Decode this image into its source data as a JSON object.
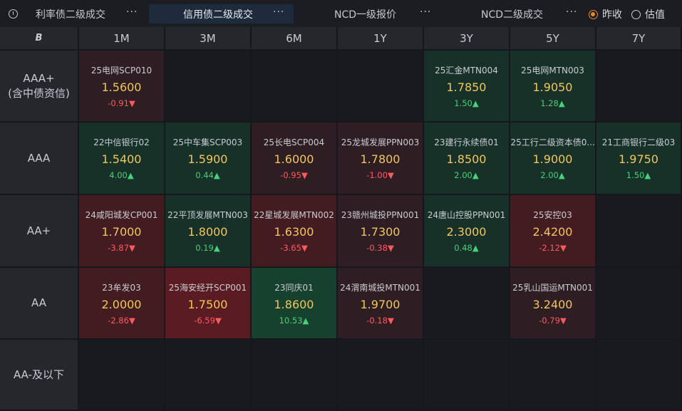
{
  "tabs": [
    {
      "label": "利率债二级成交",
      "more": "···"
    },
    {
      "label": "信用债二级成交",
      "more": "···"
    },
    {
      "label": "NCD一级报价",
      "more": "···"
    },
    {
      "label": "NCD二级成交",
      "more": "···"
    }
  ],
  "radio": {
    "option1": "昨收",
    "option2": "估值"
  },
  "grid": {
    "corner_icon": "B",
    "columns": [
      "1M",
      "3M",
      "6M",
      "1Y",
      "3Y",
      "5Y",
      "7Y"
    ],
    "rows": [
      "AAA+\n(含中债资信)",
      "AAA",
      "AA+",
      "AA",
      "AA-及以下"
    ],
    "row_labels": {
      "r0_line1": "AAA+",
      "r0_line2": "(含中债资信)",
      "r1": "AAA",
      "r2": "AA+",
      "r3": "AA",
      "r4": "AA-及以下"
    },
    "cells": [
      [
        {
          "name": "25电网SCP010",
          "yield": "1.5600",
          "change": "-0.91▼",
          "dir": "down",
          "tone": "r1"
        },
        null,
        null,
        null,
        {
          "name": "25汇金MTN004",
          "yield": "1.7850",
          "change": "1.50▲",
          "dir": "up",
          "tone": "g"
        },
        {
          "name": "25电网MTN003",
          "yield": "1.9050",
          "change": "1.28▲",
          "dir": "up",
          "tone": "g"
        },
        null
      ],
      [
        {
          "name": "22中信银行02",
          "yield": "1.5400",
          "change": "4.00▲",
          "dir": "up",
          "tone": "g"
        },
        {
          "name": "25中车集SCP003",
          "yield": "1.5900",
          "change": "0.44▲",
          "dir": "up",
          "tone": "g"
        },
        {
          "name": "25长电SCP004",
          "yield": "1.6000",
          "change": "-0.95▼",
          "dir": "down",
          "tone": "r1"
        },
        {
          "name": "25龙城发展PPN003",
          "yield": "1.7800",
          "change": "-1.00▼",
          "dir": "down",
          "tone": "r1"
        },
        {
          "name": "23建行永续债01",
          "yield": "1.8500",
          "change": "2.00▲",
          "dir": "up",
          "tone": "g"
        },
        {
          "name": "25工行二级资本债0...",
          "yield": "1.9000",
          "change": "2.00▲",
          "dir": "up",
          "tone": "g"
        },
        {
          "name": "21工商银行二级03",
          "yield": "1.9750",
          "change": "1.50▲",
          "dir": "up",
          "tone": "g"
        }
      ],
      [
        {
          "name": "24咸阳城发CP001",
          "yield": "1.7000",
          "change": "-3.87▼",
          "dir": "down",
          "tone": "r2"
        },
        {
          "name": "22平顶发展MTN003",
          "yield": "1.8000",
          "change": "0.19▲",
          "dir": "up",
          "tone": "g"
        },
        {
          "name": "22星城发展MTN002",
          "yield": "1.6300",
          "change": "-3.65▼",
          "dir": "down",
          "tone": "r2"
        },
        {
          "name": "23赣州城投PPN001",
          "yield": "1.7300",
          "change": "-0.38▼",
          "dir": "down",
          "tone": "r1"
        },
        {
          "name": "24唐山控股PPN001",
          "yield": "2.3000",
          "change": "0.48▲",
          "dir": "up",
          "tone": "g"
        },
        {
          "name": "25安控03",
          "yield": "2.4200",
          "change": "-2.12▼",
          "dir": "down",
          "tone": "r2"
        },
        null
      ],
      [
        {
          "name": "23牟发03",
          "yield": "2.0000",
          "change": "-2.86▼",
          "dir": "down",
          "tone": "r2"
        },
        {
          "name": "25海安经开SCP001",
          "yield": "1.7500",
          "change": "-6.59▼",
          "dir": "down",
          "tone": "r3"
        },
        {
          "name": "23同庆01",
          "yield": "1.8600",
          "change": "10.53▲",
          "dir": "up",
          "tone": "g2"
        },
        {
          "name": "24渭南城投MTN001",
          "yield": "1.9700",
          "change": "-0.18▼",
          "dir": "down",
          "tone": "r1"
        },
        null,
        {
          "name": "25乳山国运MTN001",
          "yield": "3.2400",
          "change": "-0.79▼",
          "dir": "down",
          "tone": "r1"
        },
        null
      ],
      [
        null,
        null,
        null,
        null,
        null,
        null,
        null
      ]
    ]
  },
  "colors": {
    "up": "#46d17a",
    "down": "#ff5a5f",
    "yield": "#f0c75c",
    "active_tab": "#1d2b3d",
    "radio_accent": "#e88a2c"
  }
}
